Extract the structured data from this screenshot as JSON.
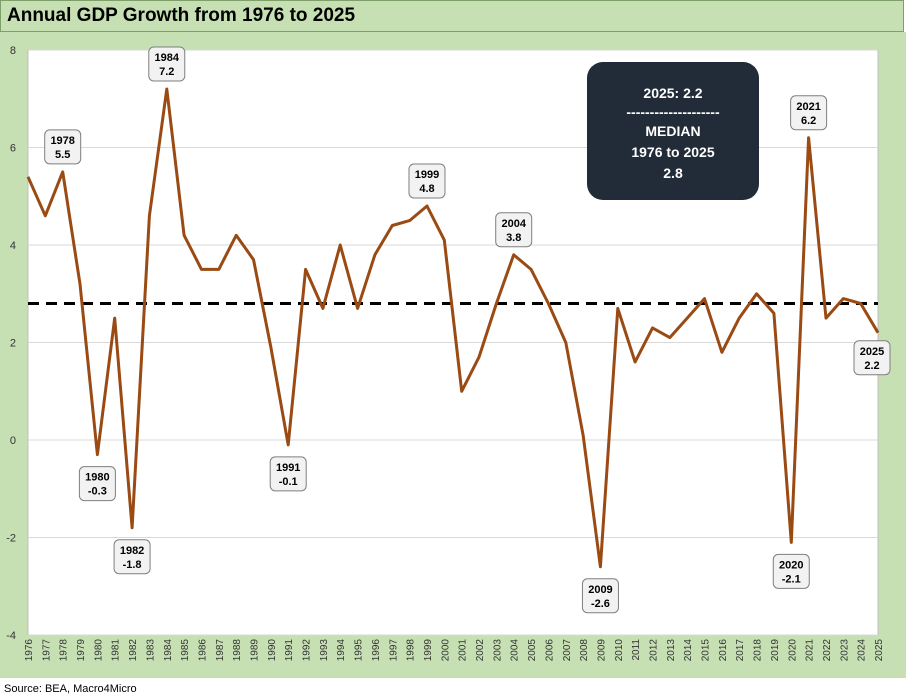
{
  "title": "Annual GDP Growth from 1976 to 2025",
  "source": "Source: BEA, Macro4Micro",
  "colors": {
    "line": "#9a4a13",
    "median": "#000000",
    "panel": "#c6e0b4",
    "info_box": "#222b38"
  },
  "info_box": {
    "line1": "2025: 2.2",
    "line2": "--------------------",
    "line3": "MEDIAN",
    "line4": "1976 to 2025",
    "line5": "2.8"
  },
  "chart_data": {
    "type": "line",
    "title": "Annual GDP Growth from 1976 to 2025",
    "xlabel": "",
    "ylabel": "",
    "ylim": [
      -4,
      8
    ],
    "yticks": [
      -4,
      -2,
      0,
      2,
      4,
      6,
      8
    ],
    "grid": true,
    "legend": "none",
    "x": [
      1976,
      1977,
      1978,
      1979,
      1980,
      1981,
      1982,
      1983,
      1984,
      1985,
      1986,
      1987,
      1988,
      1989,
      1990,
      1991,
      1992,
      1993,
      1994,
      1995,
      1996,
      1997,
      1998,
      1999,
      2000,
      2001,
      2002,
      2003,
      2004,
      2005,
      2006,
      2007,
      2008,
      2009,
      2010,
      2011,
      2012,
      2013,
      2014,
      2015,
      2016,
      2017,
      2018,
      2019,
      2020,
      2021,
      2022,
      2023,
      2024,
      2025
    ],
    "series": [
      {
        "values": [
          5.4,
          4.6,
          5.5,
          3.2,
          -0.3,
          2.5,
          -1.8,
          4.6,
          7.2,
          4.2,
          3.5,
          3.5,
          4.2,
          3.7,
          1.9,
          -0.1,
          3.5,
          2.7,
          4.0,
          2.7,
          3.8,
          4.4,
          4.5,
          4.8,
          4.1,
          1.0,
          1.7,
          2.8,
          3.8,
          3.5,
          2.8,
          2.0,
          0.1,
          -2.6,
          2.7,
          1.6,
          2.3,
          2.1,
          2.5,
          2.9,
          1.8,
          2.5,
          3.0,
          2.6,
          -2.1,
          6.2,
          2.5,
          2.9,
          2.8,
          2.2
        ]
      }
    ],
    "median_line": 2.8,
    "annotations": [
      {
        "year": 1978,
        "label_year": "1978",
        "label_value": "5.5",
        "y": 5.5,
        "pos": "above"
      },
      {
        "year": 1980,
        "label_year": "1980",
        "label_value": "-0.3",
        "y": -0.3,
        "pos": "below"
      },
      {
        "year": 1982,
        "label_year": "1982",
        "label_value": "-1.8",
        "y": -1.8,
        "pos": "below"
      },
      {
        "year": 1984,
        "label_year": "1984",
        "label_value": "7.2",
        "y": 7.2,
        "pos": "above"
      },
      {
        "year": 1991,
        "label_year": "1991",
        "label_value": "-0.1",
        "y": -0.1,
        "pos": "below"
      },
      {
        "year": 1999,
        "label_year": "1999",
        "label_value": "4.8",
        "y": 4.8,
        "pos": "above"
      },
      {
        "year": 2004,
        "label_year": "2004",
        "label_value": "3.8",
        "y": 3.8,
        "pos": "above"
      },
      {
        "year": 2009,
        "label_year": "2009",
        "label_value": "-2.6",
        "y": -2.6,
        "pos": "below"
      },
      {
        "year": 2020,
        "label_year": "2020",
        "label_value": "-2.1",
        "y": -2.1,
        "pos": "below"
      },
      {
        "year": 2021,
        "label_year": "2021",
        "label_value": "6.2",
        "y": 6.2,
        "pos": "above"
      },
      {
        "year": 2025,
        "label_year": "2025",
        "label_value": "2.2",
        "y": 2.2,
        "pos": "below"
      }
    ]
  }
}
